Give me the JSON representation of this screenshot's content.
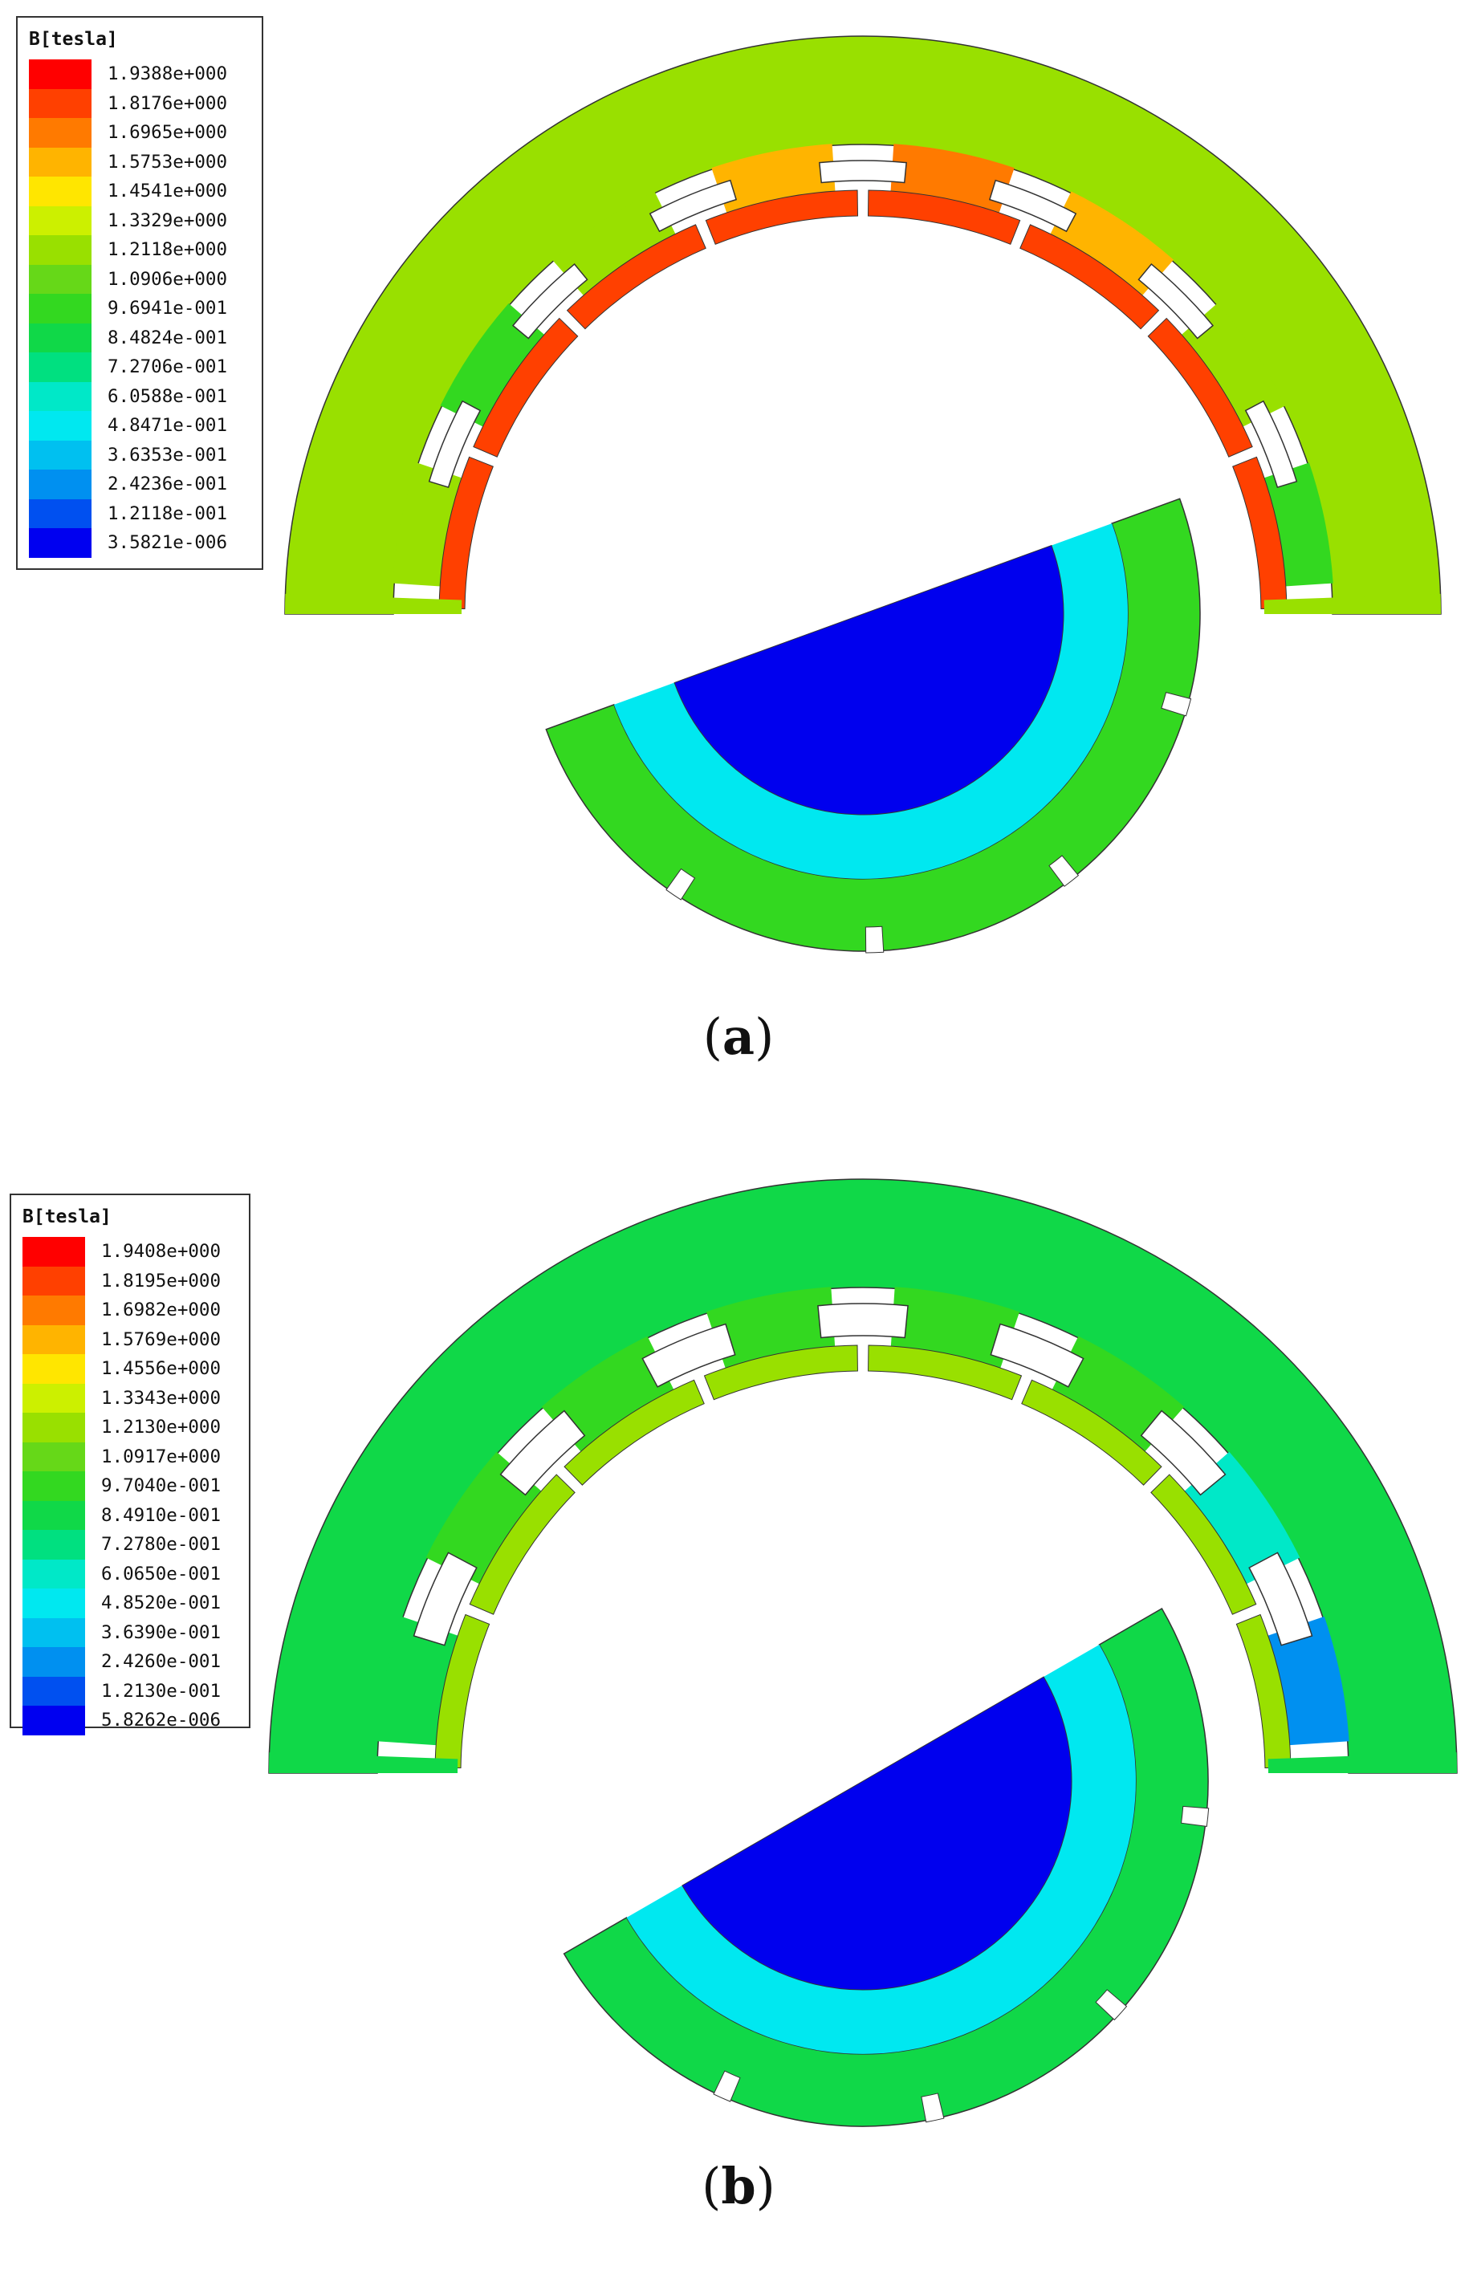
{
  "figure": {
    "panels": [
      {
        "id": "a",
        "caption_letter": "a",
        "legend": {
          "title": "B[tesla]",
          "values": [
            "1.9388e+000",
            "1.8176e+000",
            "1.6965e+000",
            "1.5753e+000",
            "1.4541e+000",
            "1.3329e+000",
            "1.2118e+000",
            "1.0906e+000",
            "9.6941e-001",
            "8.4824e-001",
            "7.2706e-001",
            "6.0588e-001",
            "4.8471e-001",
            "3.6353e-001",
            "2.4236e-001",
            "1.2118e-001",
            "3.5821e-006"
          ]
        },
        "field_levels": {
          "yoke": 6,
          "teeth": [
            8,
            6,
            3,
            2,
            3,
            6,
            8,
            6
          ],
          "tooth_tips": 1,
          "rotor_ring": 8,
          "rotor_inner": 12
        }
      },
      {
        "id": "b",
        "caption_letter": "b",
        "legend": {
          "title": "B[tesla]",
          "values": [
            "1.9408e+000",
            "1.8195e+000",
            "1.6982e+000",
            "1.5769e+000",
            "1.4556e+000",
            "1.3343e+000",
            "1.2130e+000",
            "1.0917e+000",
            "9.7040e-001",
            "8.4910e-001",
            "7.2780e-001",
            "6.0650e-001",
            "4.8520e-001",
            "3.6390e-001",
            "2.4260e-001",
            "1.2130e-001",
            "5.8262e-006"
          ]
        },
        "field_levels": {
          "yoke": 9,
          "teeth": [
            14,
            11,
            8,
            8,
            8,
            8,
            8,
            9
          ],
          "tooth_tips": 6,
          "rotor_ring": 9,
          "rotor_inner": 12
        }
      }
    ],
    "color_scale": [
      "#ff0000",
      "#ff4000",
      "#ff7a00",
      "#ffb400",
      "#ffe600",
      "#ccf000",
      "#99e000",
      "#66d818",
      "#33d820",
      "#10d848",
      "#00e080",
      "#00e8c8",
      "#00e8f0",
      "#00c0f0",
      "#0090f0",
      "#0050f0",
      "#0000f0"
    ],
    "pole_color": "#0000ee"
  }
}
